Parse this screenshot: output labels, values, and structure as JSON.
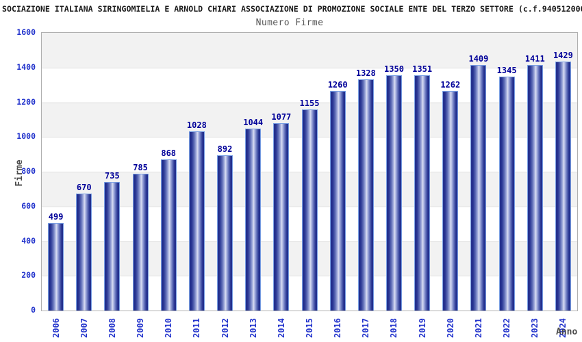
{
  "header": {
    "title": "SOCIAZIONE ITALIANA SIRINGOMIELIA E ARNOLD CHIARI ASSOCIAZIONE DI PROMOZIONE SOCIALE ENTE DEL TERZO SETTORE (c.f.940512000"
  },
  "chart_data": {
    "type": "bar",
    "title": "Numero Firme",
    "xlabel": "Anno",
    "ylabel": "Firme",
    "categories": [
      "2006",
      "2007",
      "2008",
      "2009",
      "2010",
      "2011",
      "2012",
      "2013",
      "2014",
      "2015",
      "2016",
      "2017",
      "2018",
      "2019",
      "2020",
      "2021",
      "2022",
      "2023",
      "2024"
    ],
    "values": [
      499,
      670,
      735,
      785,
      868,
      1028,
      892,
      1044,
      1077,
      1155,
      1260,
      1328,
      1350,
      1351,
      1262,
      1409,
      1345,
      1411,
      1429
    ],
    "ylim": [
      0,
      1600
    ],
    "yticks": [
      0,
      200,
      400,
      600,
      800,
      1000,
      1200,
      1400,
      1600
    ],
    "grid": "alternating horizontal bands every 200 units, light gridlines at band boundaries",
    "legend_position": "none",
    "value_labels": "above each bar",
    "colors": {
      "bar_dark": "#1f2b8a",
      "bar_highlight": "#d9ddf2",
      "bar_border": "#7aa0e4",
      "value_label": "#000099",
      "tick_label": "#2233cc",
      "band_gray": "#f2f2f2",
      "band_white": "#ffffff",
      "plot_border": "#b0b0b0",
      "title_color": "#1a1a1a",
      "subtitle_color": "#555555",
      "axis_title_color": "#4a4a4a"
    }
  }
}
